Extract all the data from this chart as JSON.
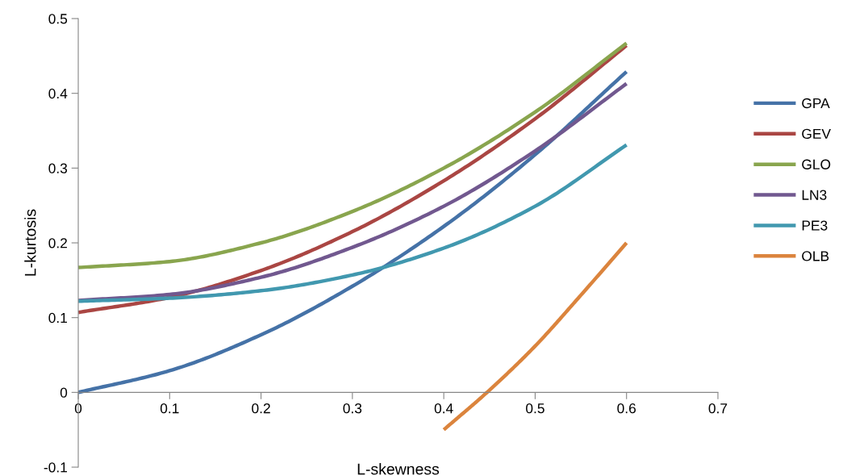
{
  "chart_data": {
    "type": "line",
    "xlabel": "L-skewness",
    "ylabel": "L-kurtosis",
    "xlim": [
      0,
      0.7
    ],
    "xticks": [
      0,
      0.1,
      0.2,
      0.3,
      0.4,
      0.5,
      0.6,
      0.7
    ],
    "ylim": [
      -0.1,
      0.5
    ],
    "yticks": [
      -0.1,
      0,
      0.1,
      0.2,
      0.3,
      0.4,
      0.5
    ],
    "grid": false,
    "legend": "right",
    "marker": "none",
    "line_style": "solid",
    "series": [
      {
        "name": "GPA",
        "color": "#4572a7",
        "x": [
          0,
          0.1,
          0.2,
          0.3,
          0.4,
          0.5,
          0.6
        ],
        "values": [
          0,
          0.029,
          0.077,
          0.142,
          0.222,
          0.318,
          0.429
        ]
      },
      {
        "name": "GEV",
        "color": "#aa4643",
        "x": [
          0,
          0.1,
          0.2,
          0.3,
          0.4,
          0.5,
          0.6
        ],
        "values": [
          0.107,
          0.127,
          0.163,
          0.215,
          0.283,
          0.366,
          0.464
        ]
      },
      {
        "name": "GLO",
        "color": "#89a54e",
        "x": [
          0,
          0.1,
          0.2,
          0.3,
          0.4,
          0.5,
          0.6
        ],
        "values": [
          0.167,
          0.175,
          0.2,
          0.242,
          0.3,
          0.375,
          0.467
        ]
      },
      {
        "name": "LN3",
        "color": "#71588f",
        "x": [
          0,
          0.1,
          0.2,
          0.3,
          0.4,
          0.5,
          0.6
        ],
        "values": [
          0.123,
          0.131,
          0.154,
          0.194,
          0.249,
          0.323,
          0.413
        ]
      },
      {
        "name": "PE3",
        "color": "#4198af",
        "x": [
          0,
          0.1,
          0.2,
          0.3,
          0.4,
          0.5,
          0.6
        ],
        "values": [
          0.122,
          0.126,
          0.136,
          0.157,
          0.193,
          0.249,
          0.331
        ]
      },
      {
        "name": "OLB",
        "color": "#db843d",
        "x": [
          0.4,
          0.45,
          0.5,
          0.55,
          0.6
        ],
        "values": [
          -0.05,
          0.003,
          0.062,
          0.13,
          0.2
        ]
      }
    ]
  }
}
